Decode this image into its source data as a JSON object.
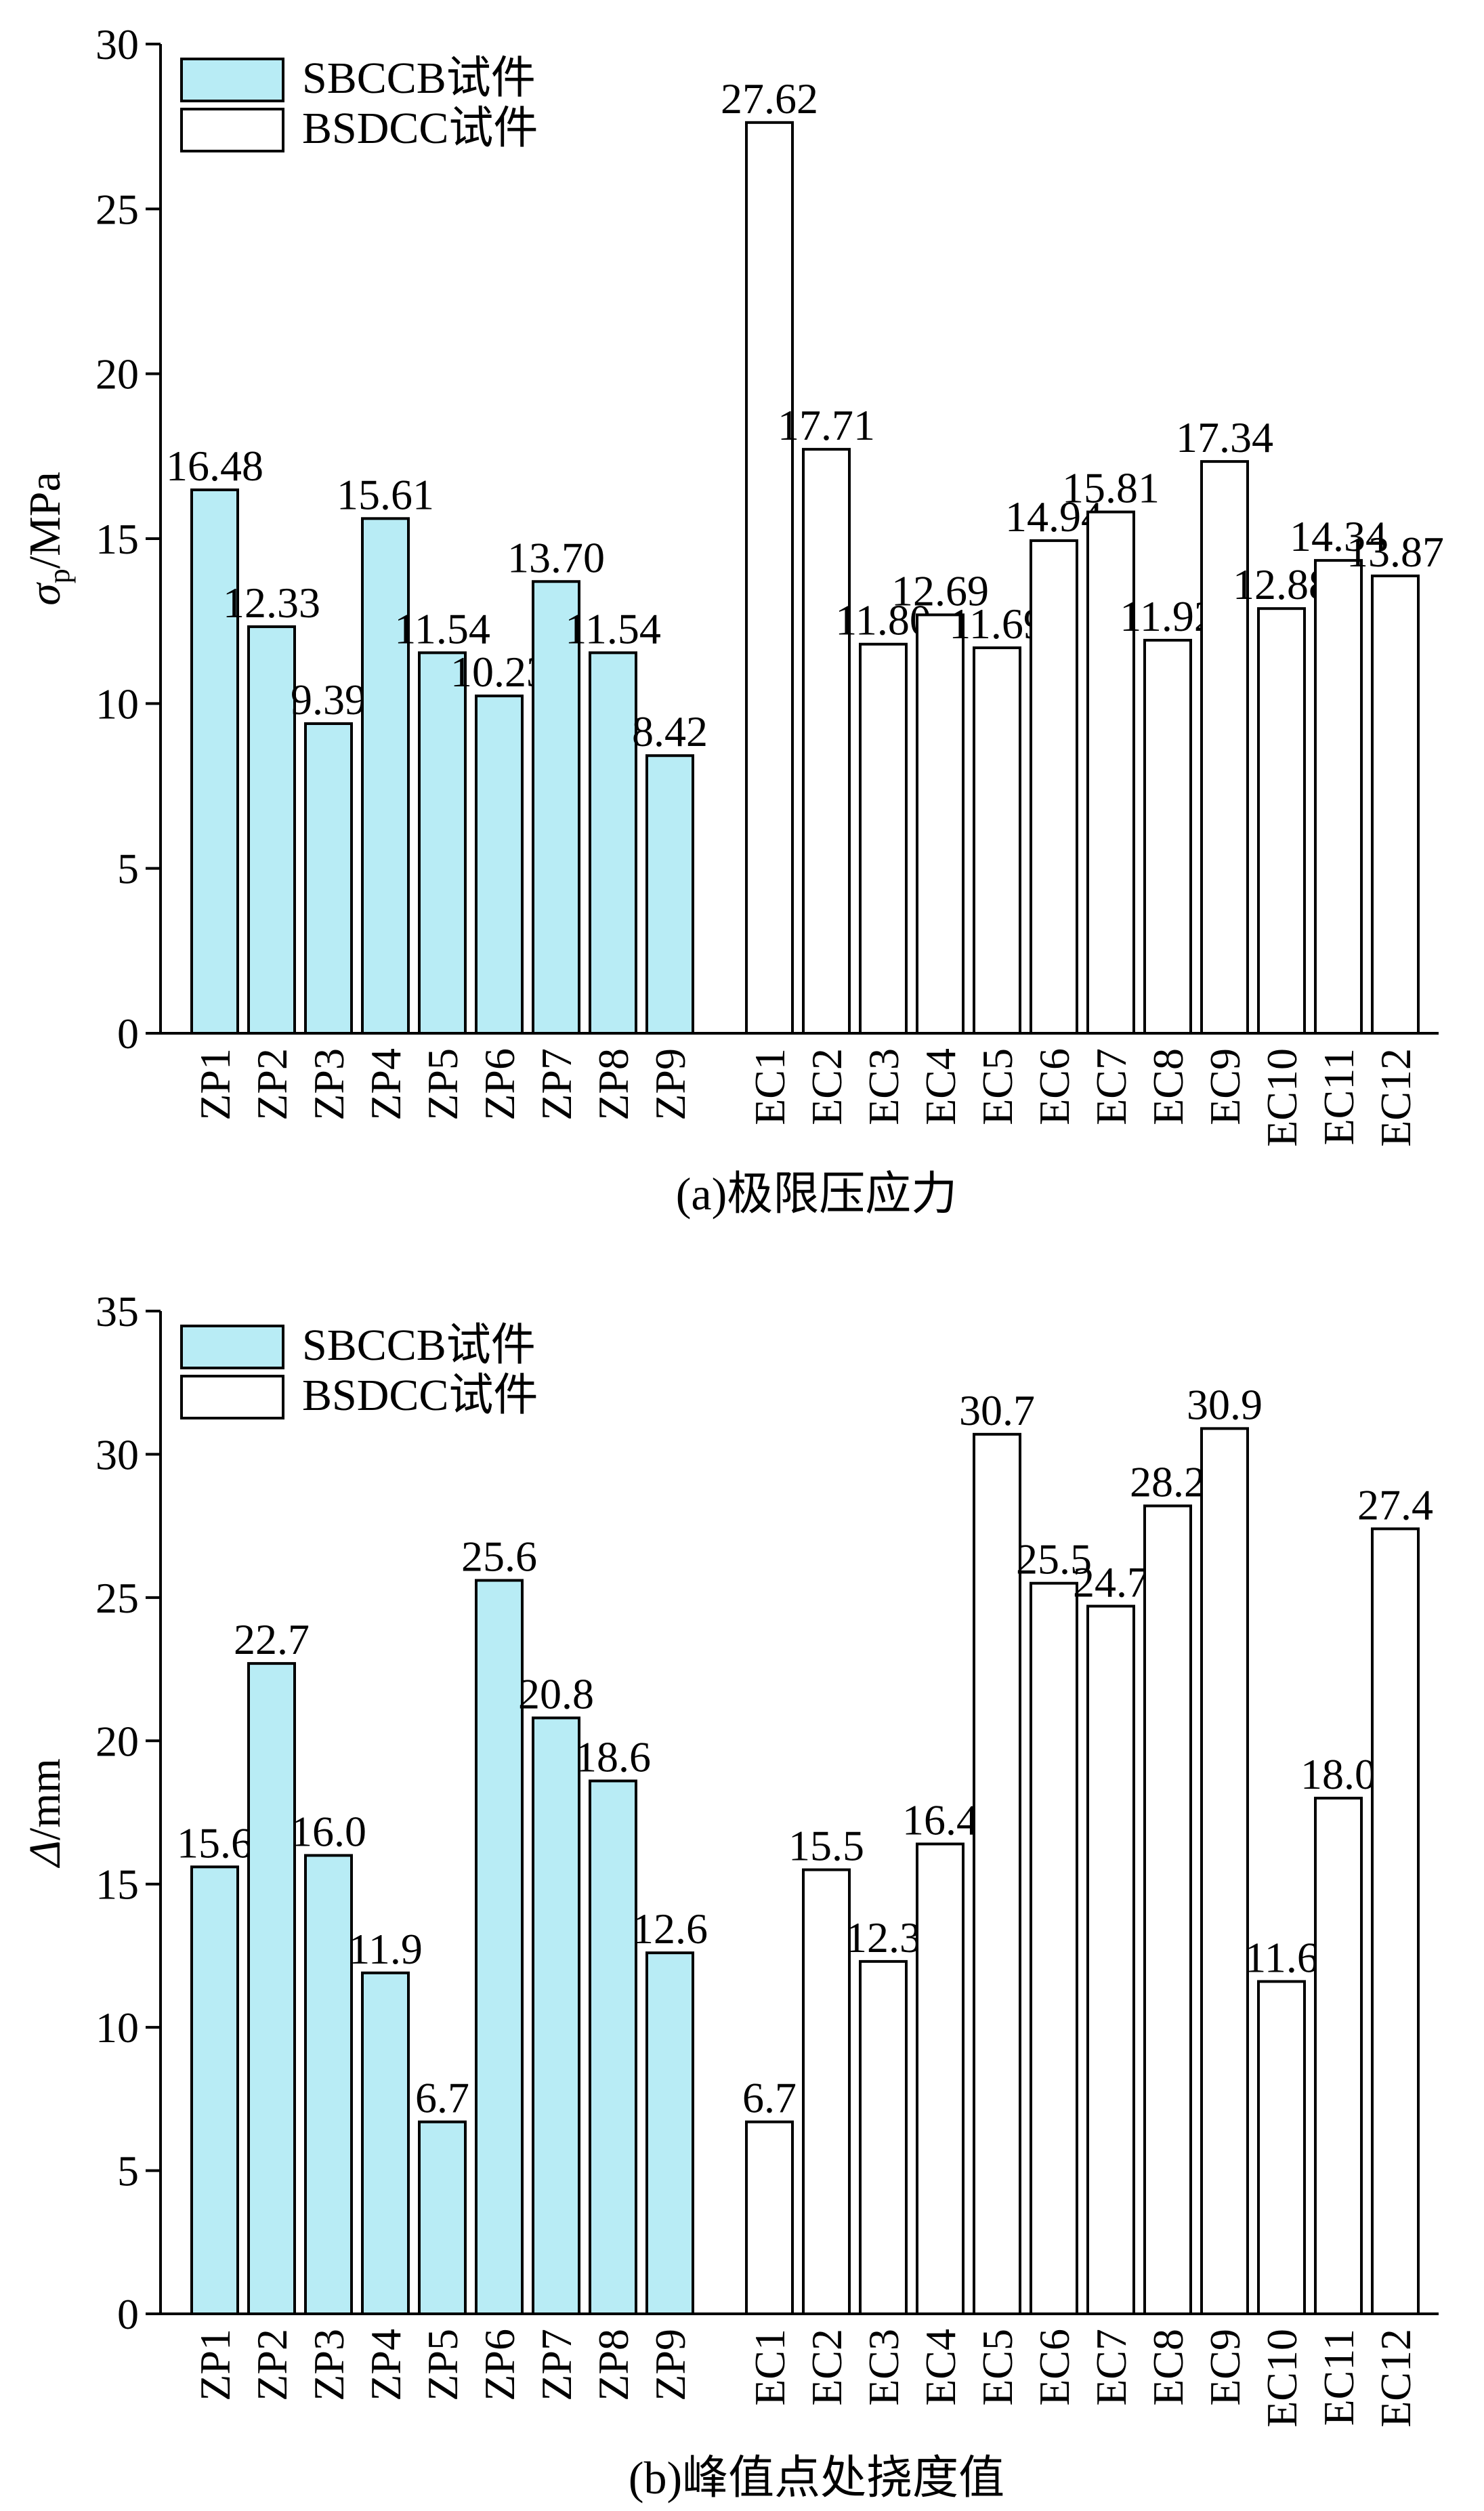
{
  "colors": {
    "sbccb_fill": "#b8ecf5",
    "bsdcc_fill": "#ffffff",
    "stroke": "#000000"
  },
  "chart_data": [
    {
      "type": "bar",
      "caption": "(a)极限压应力",
      "ylabel_main": "σ",
      "ylabel_sub": "p",
      "ylabel_unit": "/MPa",
      "ylim": [
        0,
        30
      ],
      "yticks": [
        0,
        5,
        10,
        15,
        20,
        25,
        30
      ],
      "legend_position": "top-left",
      "series": [
        {
          "name": "SBCCB试件",
          "categories": [
            "ZP1",
            "ZP2",
            "ZP3",
            "ZP4",
            "ZP5",
            "ZP6",
            "ZP7",
            "ZP8",
            "ZP9"
          ],
          "values": [
            16.48,
            12.33,
            9.39,
            15.61,
            11.54,
            10.23,
            13.7,
            11.54,
            8.42
          ],
          "labels": [
            "16.48",
            "12.33",
            "9.39",
            "15.61",
            "11.54",
            "10.23",
            "13.70",
            "11.54",
            "8.42"
          ]
        },
        {
          "name": "BSDCC试件",
          "categories": [
            "EC1",
            "EC2",
            "EC3",
            "EC4",
            "EC5",
            "EC6",
            "EC7",
            "EC8",
            "EC9",
            "EC10",
            "EC11",
            "EC12"
          ],
          "values": [
            27.62,
            17.71,
            11.8,
            12.69,
            11.69,
            14.94,
            15.81,
            11.92,
            17.34,
            12.88,
            14.34,
            13.87
          ],
          "labels": [
            "27.62",
            "17.71",
            "11.80",
            "12.69",
            "11.69",
            "14.94",
            "15.81",
            "11.92",
            "17.34",
            "12.88",
            "14.34",
            "13.87"
          ]
        }
      ]
    },
    {
      "type": "bar",
      "caption": "(b)峰值点处挠度值",
      "ylabel_main": "Δ",
      "ylabel_sub": "",
      "ylabel_unit": "/mm",
      "ylim": [
        0,
        35
      ],
      "yticks": [
        0,
        5,
        10,
        15,
        20,
        25,
        30,
        35
      ],
      "legend_position": "top-left",
      "series": [
        {
          "name": "SBCCB试件",
          "categories": [
            "ZP1",
            "ZP2",
            "ZP3",
            "ZP4",
            "ZP5",
            "ZP6",
            "ZP7",
            "ZP8",
            "ZP9"
          ],
          "values": [
            15.6,
            22.7,
            16.0,
            11.9,
            6.7,
            25.6,
            20.8,
            18.6,
            12.6
          ],
          "labels": [
            "15.6",
            "22.7",
            "16.0",
            "11.9",
            "6.7",
            "25.6",
            "20.8",
            "18.6",
            "12.6"
          ]
        },
        {
          "name": "BSDCC试件",
          "categories": [
            "EC1",
            "EC2",
            "EC3",
            "EC4",
            "EC5",
            "EC6",
            "EC7",
            "EC8",
            "EC9",
            "EC10",
            "EC11",
            "EC12"
          ],
          "values": [
            6.7,
            15.5,
            12.3,
            16.4,
            30.7,
            25.5,
            24.7,
            28.2,
            30.9,
            11.6,
            18.0,
            27.4
          ],
          "labels": [
            "6.7",
            "15.5",
            "12.3",
            "16.4",
            "30.7",
            "25.5",
            "24.7",
            "28.2",
            "30.9",
            "11.6",
            "18.0",
            "27.4"
          ]
        }
      ]
    }
  ]
}
